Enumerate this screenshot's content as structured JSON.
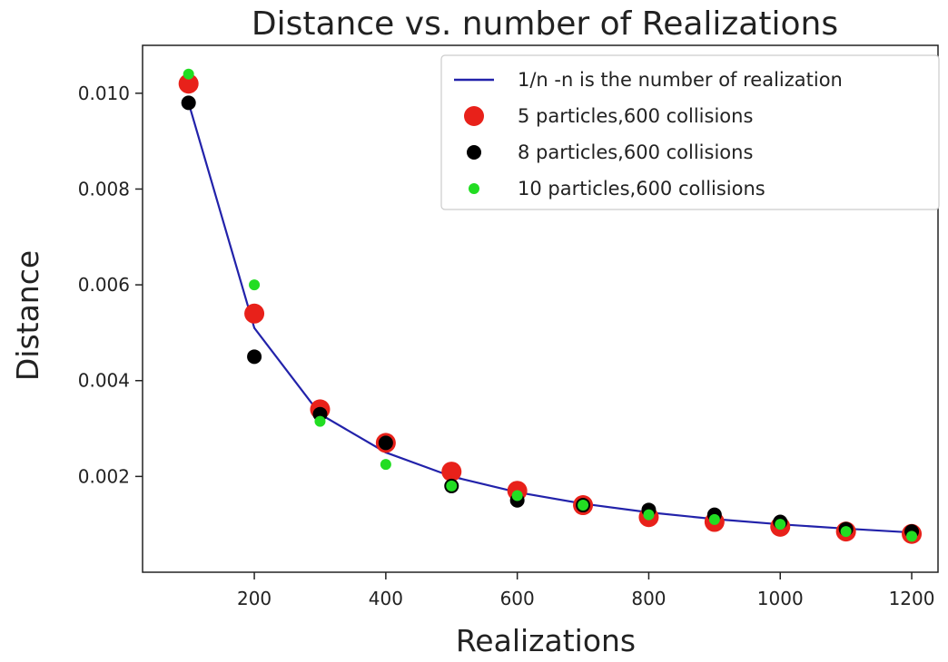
{
  "chart_data": {
    "type": "line+scatter",
    "title": "Distance vs. number of Realizations",
    "xlabel": "Realizations",
    "ylabel": "Distance",
    "xlim": [
      30,
      1240
    ],
    "ylim": [
      0.0,
      0.011
    ],
    "xticks": [
      200,
      400,
      600,
      800,
      1000,
      1200
    ],
    "xtick_labels": [
      "200",
      "400",
      "600",
      "800",
      "1000",
      "1200"
    ],
    "yticks": [
      0.002,
      0.004,
      0.006,
      0.008,
      0.01
    ],
    "ytick_labels": [
      "0.002",
      "0.004",
      "0.006",
      "0.008",
      "0.010"
    ],
    "legend_position": "top-right",
    "grid": false,
    "series": [
      {
        "name": "1/n -n is the number of realization",
        "kind": "line",
        "color": "#2222aa",
        "x": [
          100,
          200,
          300,
          400,
          500,
          600,
          700,
          800,
          900,
          1000,
          1100,
          1200
        ],
        "y": [
          0.0098,
          0.0051,
          0.0033,
          0.0025,
          0.002,
          0.00167,
          0.00143,
          0.00125,
          0.00111,
          0.001,
          0.00091,
          0.00083
        ]
      },
      {
        "name": "5 particles,600 collisions",
        "kind": "scatter",
        "color": "#e8211a",
        "marker_size": 11,
        "x": [
          100,
          200,
          300,
          400,
          500,
          600,
          700,
          800,
          900,
          1000,
          1100,
          1200
        ],
        "y": [
          0.0102,
          0.0054,
          0.0034,
          0.0027,
          0.0021,
          0.0017,
          0.0014,
          0.00115,
          0.00105,
          0.00095,
          0.00085,
          0.0008
        ]
      },
      {
        "name": "8 particles,600 collisions",
        "kind": "scatter",
        "color": "#000000",
        "marker_size": 8,
        "x": [
          100,
          200,
          300,
          400,
          500,
          600,
          700,
          800,
          900,
          1000,
          1100,
          1200
        ],
        "y": [
          0.0098,
          0.0045,
          0.0033,
          0.0027,
          0.0018,
          0.0015,
          0.0014,
          0.0013,
          0.0012,
          0.00105,
          0.0009,
          0.00085
        ]
      },
      {
        "name": "10 particles,600 collisions",
        "kind": "scatter",
        "color": "#22dd22",
        "marker_size": 6,
        "x": [
          100,
          200,
          300,
          400,
          500,
          600,
          700,
          800,
          900,
          1000,
          1100,
          1200
        ],
        "y": [
          0.0104,
          0.006,
          0.00315,
          0.00225,
          0.0018,
          0.0016,
          0.0014,
          0.0012,
          0.0011,
          0.001,
          0.00085,
          0.00075
        ]
      }
    ]
  }
}
